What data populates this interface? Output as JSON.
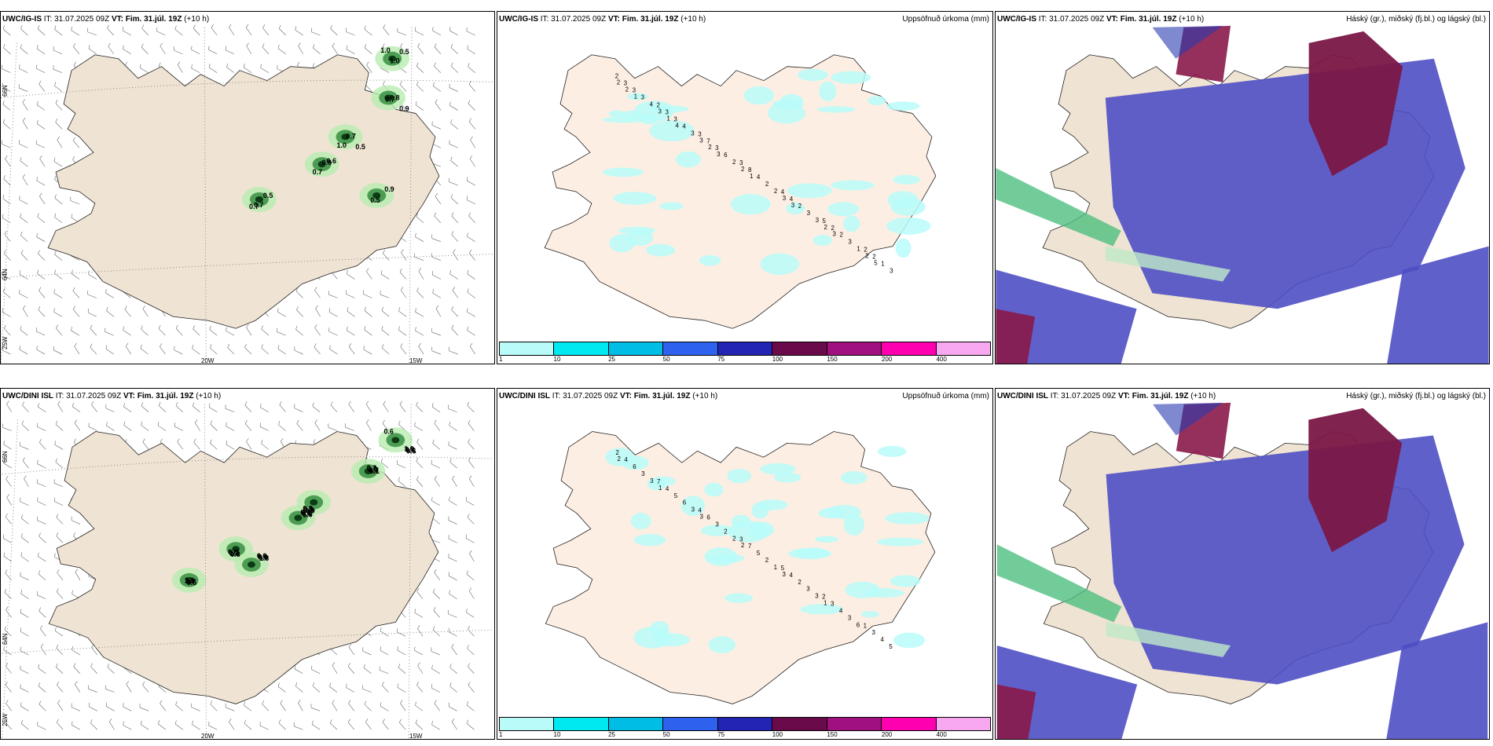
{
  "rows": [
    {
      "model": "UWC/IG-IS",
      "it_text": "IT: 31.07.2025 09Z",
      "vt_label": "VT: Fim. 31.júl. 19Z",
      "lead": "(+10 h)",
      "wind_values": [
        "1.0",
        "0.8",
        "1.0",
        "0.6",
        "0.7",
        "0.9",
        "1.0",
        "0.9",
        "0.7",
        "0.7",
        "0.5",
        "0.5",
        "0.5",
        "0.7",
        "0.5",
        "0.9",
        "0.7"
      ],
      "precip_values": [
        "2",
        "2",
        "3",
        "3",
        "4",
        "5",
        "2",
        "3",
        "3",
        "7",
        "8",
        "4",
        "2",
        "2",
        "3",
        "3",
        "3",
        "4",
        "2",
        "2",
        "1",
        "3",
        "4",
        "6",
        "2",
        "3",
        "3",
        "3",
        "4",
        "3",
        "2",
        "2",
        "3",
        "1",
        "2",
        "3",
        "3",
        "2",
        "3",
        "2",
        "2",
        "2",
        "1",
        "2",
        "1",
        "3",
        "3",
        "5",
        "1",
        "4",
        "3"
      ]
    },
    {
      "model": "UWC/DINI ISL",
      "it_text": "IT: 31.07.2025 09Z",
      "vt_label": "VT: Fim. 31.júl. 19Z",
      "lead": "(+10 h)",
      "wind_values": [
        "0.6",
        "1.1",
        "0.9",
        "1.0",
        "0.8",
        "1.8",
        "0.5",
        "0.6",
        "0.7",
        "1.0",
        "0.6",
        "1.4",
        "0.9",
        "0.7",
        "0.6",
        "1.0",
        "0.9",
        "0.5",
        "0.7",
        "0.6",
        "1.6",
        "0.9",
        "1.0",
        "0.8",
        "0.7",
        "0.6",
        "0.6",
        "1.1",
        "1.0",
        "0.7"
      ],
      "precip_values": [
        "2",
        "7",
        "4",
        "3",
        "5",
        "2",
        "1",
        "4",
        "4",
        "6",
        "7",
        "4",
        "3",
        "3",
        "6",
        "5",
        "3",
        "5",
        "2",
        "4",
        "4",
        "3",
        "6",
        "2",
        "2",
        "3",
        "3",
        "5",
        "3",
        "3",
        "2",
        "1",
        "3",
        "6",
        "2",
        "1",
        "3",
        "2",
        "3",
        "1"
      ]
    }
  ],
  "precip_title": "Uppsöfnuð úrkoma (mm)",
  "cloud_title": "Háský (gr.), miðský (fj.bl.) og lágský (bl.)",
  "lon_labels": [
    "20W",
    "15W"
  ],
  "lat_labels": [
    "66N",
    "64N",
    "25W"
  ],
  "colorbar": {
    "colors": [
      "#b9fbf9",
      "#00e8f0",
      "#00bde6",
      "#2e62ee",
      "#2323b4",
      "#6a0a4a",
      "#a0107e",
      "#ff00b0",
      "#f7a8f0"
    ],
    "ticks": [
      "1",
      "10",
      "25",
      "50",
      "75",
      "100",
      "150",
      "200",
      "400"
    ]
  }
}
